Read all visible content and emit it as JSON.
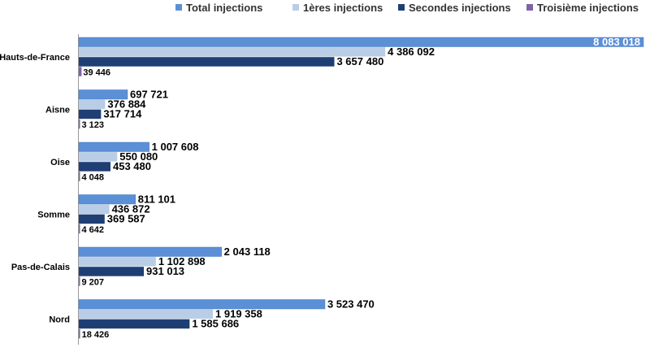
{
  "chart_data": {
    "type": "bar",
    "orientation": "horizontal",
    "categories": [
      "Hauts-de-France",
      "Aisne",
      "Oise",
      "Somme",
      "Pas-de-Calais",
      "Nord"
    ],
    "series": [
      {
        "name": "Total injections",
        "color": "#5b8fd6",
        "values": [
          8083018,
          697721,
          1007608,
          811101,
          2043118,
          3523470
        ],
        "labels": [
          "8 083 018",
          "697 721",
          "1 007 608",
          "811 101",
          "2 043 118",
          "3 523 470"
        ]
      },
      {
        "name": "1ères injections",
        "color": "#b9cde6",
        "values": [
          4386092,
          376884,
          550080,
          436872,
          1102898,
          1919358
        ],
        "labels": [
          "4 386 092",
          "376 884",
          "550 080",
          "436 872",
          "1 102 898",
          "1 919 358"
        ]
      },
      {
        "name": "Secondes injections",
        "color": "#1f3f74",
        "values": [
          3657480,
          317714,
          453480,
          369587,
          931013,
          1585686
        ],
        "labels": [
          "3 657 480",
          "317 714",
          "453 480",
          "369 587",
          "931 013",
          "1 585 686"
        ]
      },
      {
        "name": "Troisième injections",
        "color": "#7f62a8",
        "values": [
          39446,
          3123,
          4048,
          4642,
          9207,
          18426
        ],
        "labels": [
          "39 446",
          "3 123",
          "4 048",
          "4 642",
          "9 207",
          "18 426"
        ]
      }
    ],
    "legend_position": "top-right",
    "grid": false,
    "xlim": [
      0,
      8083018
    ]
  }
}
